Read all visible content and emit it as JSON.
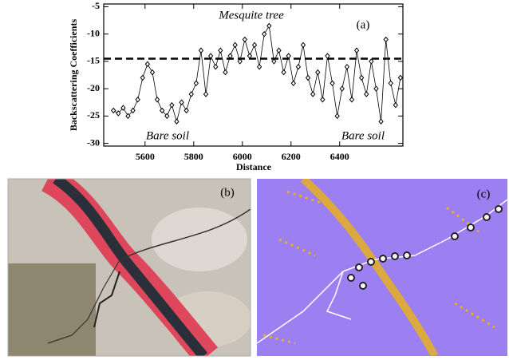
{
  "chart_data": {
    "type": "line",
    "annotations": {
      "panel": "(a)",
      "top": "Mesquite tree",
      "left": "Bare soil",
      "right": "Bare soil"
    },
    "xlabel": "Distance",
    "ylabel": "Backscattering Coefficients",
    "x": [
      5470,
      5490,
      5510,
      5530,
      5550,
      5570,
      5590,
      5610,
      5630,
      5650,
      5670,
      5690,
      5710,
      5730,
      5750,
      5770,
      5790,
      5810,
      5830,
      5850,
      5870,
      5890,
      5910,
      5930,
      5950,
      5970,
      5990,
      6010,
      6030,
      6050,
      6070,
      6090,
      6110,
      6130,
      6150,
      6170,
      6190,
      6210,
      6230,
      6250,
      6270,
      6290,
      6310,
      6330,
      6350,
      6370,
      6390,
      6410,
      6430,
      6450,
      6470,
      6490,
      6510,
      6530,
      6550,
      6570,
      6590,
      6610,
      6630,
      6650
    ],
    "series": [
      {
        "color": "#000000",
        "values": [
          -24,
          -24.5,
          -23.5,
          -25,
          -24,
          -22,
          -18,
          -15.5,
          -17,
          -22,
          -24,
          -25,
          -23,
          -26,
          -22.5,
          -24,
          -21,
          -19,
          -13,
          -21,
          -14,
          -16,
          -13,
          -17,
          -14,
          -12,
          -15,
          -11,
          -14,
          -12,
          -16,
          -10,
          -8.5,
          -15,
          -13,
          -17,
          -14,
          -19,
          -16,
          -12,
          -18,
          -21,
          -17,
          -22,
          -14,
          -19,
          -25,
          -20,
          -16,
          -22,
          -13,
          -18,
          -21,
          -15,
          -20,
          -26,
          -11,
          -19,
          -23,
          -18
        ]
      }
    ],
    "reference_line": -14.5,
    "xlim": [
      5430,
      6660
    ],
    "xticks": [
      5600,
      5800,
      6000,
      6200,
      6400
    ],
    "ylim": [
      -30.5,
      -4.5
    ],
    "yticks": [
      -5,
      -10,
      -15,
      -20,
      -25,
      -30
    ]
  },
  "panels": [
    {
      "label": "(b)"
    },
    {
      "label": "(c)"
    }
  ]
}
